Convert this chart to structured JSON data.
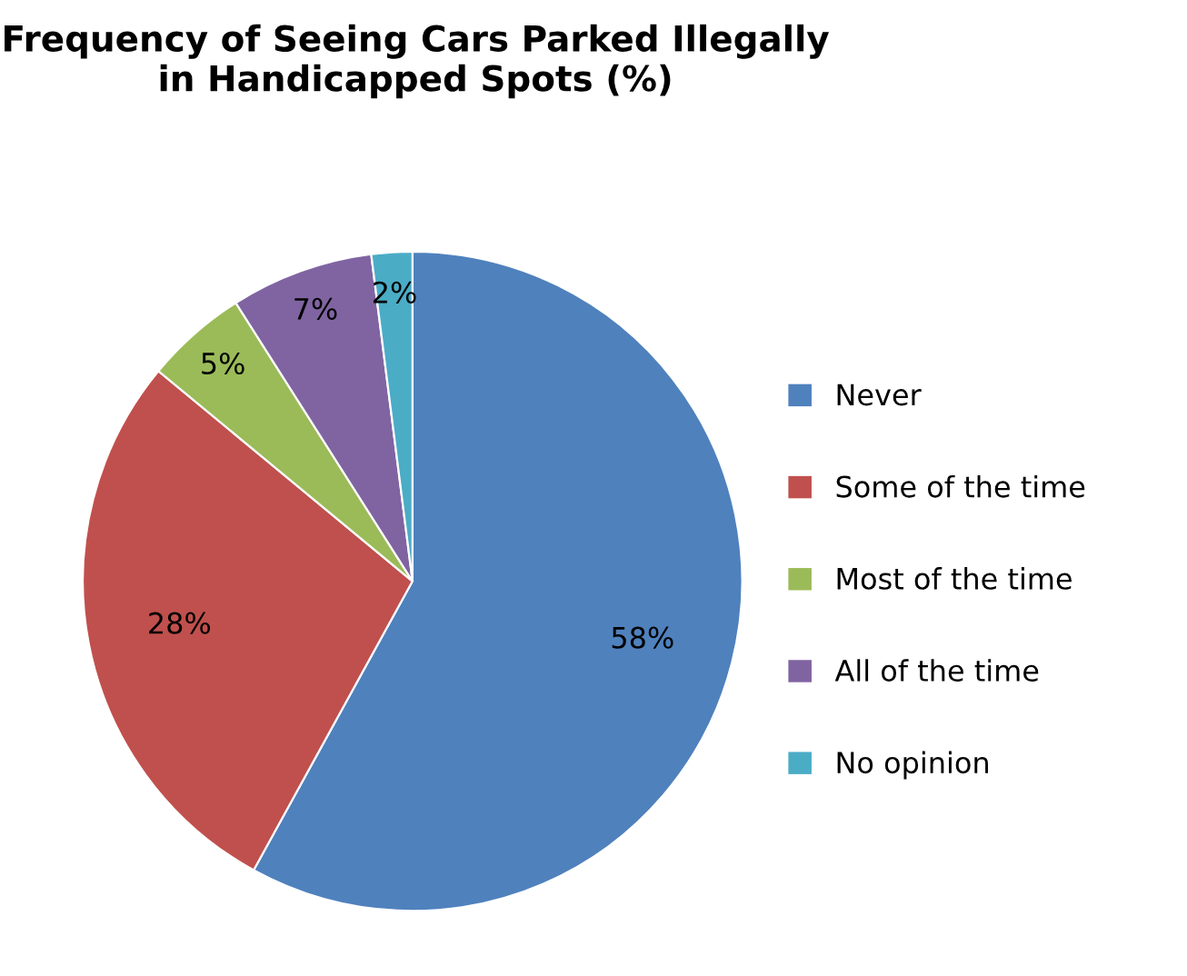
{
  "chart_data": {
    "type": "pie",
    "title": "Frequency of Seeing Cars Parked Illegally in Handicapped Spots (%)",
    "categories": [
      "Never",
      "Some of the time",
      "Most of the time",
      "All of the time",
      "No opinion"
    ],
    "values": [
      58,
      28,
      5,
      7,
      2
    ],
    "colors": [
      "#4f81bd",
      "#c0504d",
      "#9bbb59",
      "#8064a2",
      "#4bacc6"
    ],
    "value_labels": [
      "58%",
      "28%",
      "5%",
      "7%",
      "2%"
    ],
    "legend": "right"
  }
}
